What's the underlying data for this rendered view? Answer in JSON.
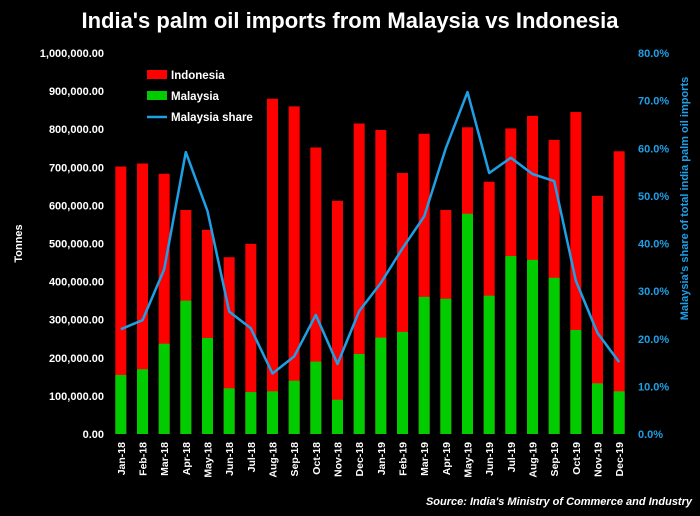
{
  "chart_data": {
    "type": "bar",
    "title": "India's palm oil imports from Malaysia vs Indonesia",
    "source": "Source: India's Ministry of Commerce and Industry",
    "ylabel": "Tonnes",
    "y2label": "Malaysia's share of total india palm oil imports",
    "ylim": [
      0,
      1000000
    ],
    "y2lim": [
      0,
      0.8
    ],
    "y_ticks": [
      "0.00",
      "100,000.00",
      "200,000.00",
      "300,000.00",
      "400,000.00",
      "500,000.00",
      "600,000.00",
      "700,000.00",
      "800,000.00",
      "900,000.00",
      "1,000,000.00"
    ],
    "y2_ticks": [
      "0.0%",
      "10.0%",
      "20.0%",
      "30.0%",
      "40.0%",
      "50.0%",
      "60.0%",
      "70.0%",
      "80.0%"
    ],
    "categories": [
      "Jan-18",
      "Feb-18",
      "Mar-18",
      "Apr-18",
      "May-18",
      "Jun-18",
      "Jul-18",
      "Aug-18",
      "Sep-18",
      "Oct-18",
      "Nov-18",
      "Dec-18",
      "Jan-19",
      "Feb-19",
      "Mar-19",
      "Apr-19",
      "May-19",
      "Jun-19",
      "Jul-19",
      "Aug-19",
      "Sep-19",
      "Oct-19",
      "Nov-19",
      "Dec-19"
    ],
    "series": [
      {
        "name": "Indonesia",
        "kind": "bar-total",
        "color": "#ff0000",
        "values": [
          702000,
          710000,
          683000,
          588000,
          536000,
          464000,
          499000,
          880000,
          860000,
          752000,
          612000,
          815000,
          798000,
          685000,
          788000,
          588000,
          805000,
          662000,
          802000,
          835000,
          772000,
          845000,
          625000,
          742000
        ]
      },
      {
        "name": "Malaysia",
        "kind": "bar",
        "color": "#00cc00",
        "values": [
          155000,
          170000,
          237000,
          350000,
          252000,
          120000,
          110000,
          112000,
          140000,
          190000,
          90000,
          210000,
          253000,
          268000,
          360000,
          355000,
          578000,
          363000,
          467000,
          457000,
          410000,
          273000,
          133000,
          112000
        ]
      },
      {
        "name": "Malaysia share",
        "kind": "line",
        "axis": "right",
        "color": "#1ea0e6",
        "values": [
          0.22,
          0.239,
          0.346,
          0.592,
          0.468,
          0.257,
          0.222,
          0.127,
          0.163,
          0.25,
          0.147,
          0.258,
          0.317,
          0.39,
          0.457,
          0.6,
          0.718,
          0.548,
          0.58,
          0.546,
          0.531,
          0.322,
          0.212,
          0.151
        ]
      }
    ],
    "legend": [
      "Indonesia",
      "Malaysia",
      "Malaysia share"
    ],
    "legend_position": "top-left"
  }
}
